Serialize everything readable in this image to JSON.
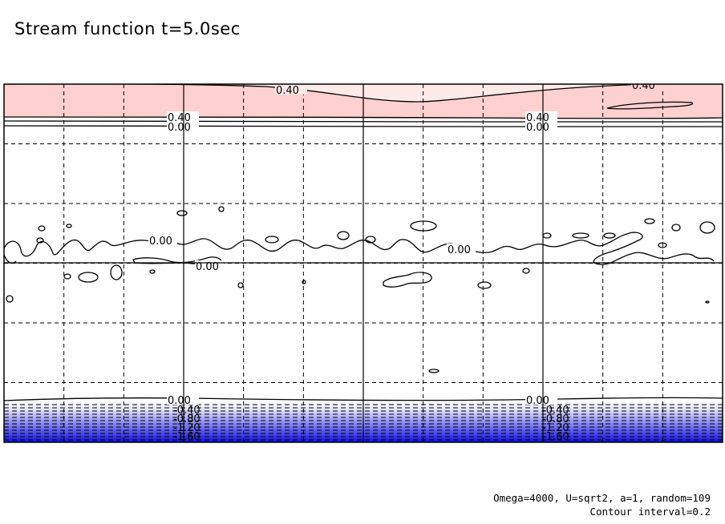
{
  "title": "Stream function t=5.0sec",
  "footer": {
    "params": "Omega=4000, U=sqrt2, a=1, random=109",
    "interval": "Contour interval=0.2"
  },
  "colors": {
    "positive_fill": "#ffd0d0",
    "positive_light": "#ffeaea",
    "negative_light": "#e6e6ff",
    "negative_dark": "#1010e6",
    "line": "#000000"
  },
  "chart_data": {
    "type": "contour",
    "variable": "stream function",
    "time_sec": 5.0,
    "contour_interval": 0.2,
    "negative_contours": "dashed",
    "grid": true,
    "contour_labels": [
      {
        "text": "0.40",
        "band": "top"
      },
      {
        "text": "0.40",
        "band": "top"
      },
      {
        "text": "0.40",
        "band": "top"
      },
      {
        "text": "0.40",
        "band": "top"
      },
      {
        "text": "0.00",
        "band": "top"
      },
      {
        "text": "0.00",
        "band": "top"
      },
      {
        "text": "0.00",
        "band": "middle"
      },
      {
        "text": "0.00",
        "band": "middle"
      },
      {
        "text": "0.00",
        "band": "middle"
      },
      {
        "text": "0.00",
        "band": "bottom"
      },
      {
        "text": "0.00",
        "band": "bottom"
      },
      {
        "text": "-0.40",
        "band": "bottom"
      },
      {
        "text": "-0.80",
        "band": "bottom"
      },
      {
        "text": "-1.20",
        "band": "bottom"
      },
      {
        "text": "-1.60",
        "band": "bottom"
      },
      {
        "text": "-0.40",
        "band": "bottom"
      },
      {
        "text": "-0.80",
        "band": "bottom"
      },
      {
        "text": "-1.20",
        "band": "bottom"
      },
      {
        "text": "-1.60",
        "band": "bottom"
      }
    ]
  }
}
